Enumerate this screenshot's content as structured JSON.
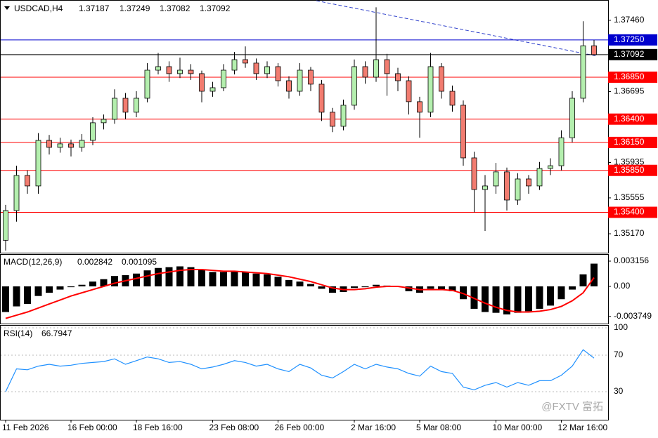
{
  "chart_data": {
    "type": "candlestick",
    "symbol": "USDCAD,H4",
    "categories": [
      "11 Feb 2026",
      null,
      null,
      null,
      null,
      null,
      "16 Feb 00:00",
      null,
      null,
      null,
      null,
      null,
      "18 Feb 16:00",
      null,
      null,
      null,
      null,
      null,
      null,
      "23 Feb 08:00",
      null,
      null,
      null,
      null,
      null,
      "26 Feb 00:00",
      null,
      null,
      null,
      null,
      null,
      null,
      "2 Mar 16:00",
      null,
      null,
      null,
      null,
      null,
      "5 Mar 08:00",
      null,
      null,
      null,
      null,
      null,
      null,
      "10 Mar 00:00",
      null,
      null,
      null,
      null,
      null,
      "12 Mar 16:00",
      null,
      null,
      null
    ],
    "candles": [
      [
        1.351,
        1.3548,
        1.3499,
        1.35419
      ],
      [
        1.35419,
        1.359,
        1.353,
        1.35796
      ],
      [
        1.35796,
        1.3585,
        1.356,
        1.35683
      ],
      [
        1.35683,
        1.3625,
        1.356,
        1.36172
      ],
      [
        1.36172,
        1.3623,
        1.3602,
        1.36097
      ],
      [
        1.36097,
        1.362,
        1.3604,
        1.36135
      ],
      [
        1.36135,
        1.3618,
        1.36,
        1.36097
      ],
      [
        1.36097,
        1.3624,
        1.3605,
        1.36172
      ],
      [
        1.36172,
        1.3642,
        1.3612,
        1.36361
      ],
      [
        1.36361,
        1.3645,
        1.3629,
        1.36398
      ],
      [
        1.36398,
        1.3672,
        1.3635,
        1.36624
      ],
      [
        1.36624,
        1.3668,
        1.364,
        1.36474
      ],
      [
        1.36474,
        1.367,
        1.3642,
        1.36624
      ],
      [
        1.36624,
        1.37,
        1.3658,
        1.36925
      ],
      [
        1.36925,
        1.3711,
        1.3688,
        1.36963
      ],
      [
        1.36963,
        1.3702,
        1.368,
        1.36888
      ],
      [
        1.36888,
        1.3706,
        1.3684,
        1.36925
      ],
      [
        1.36925,
        1.3699,
        1.3682,
        1.36888
      ],
      [
        1.36888,
        1.3692,
        1.3658,
        1.36699
      ],
      [
        1.36699,
        1.368,
        1.3664,
        1.36737
      ],
      [
        1.36737,
        1.3699,
        1.367,
        1.36925
      ],
      [
        1.36925,
        1.3712,
        1.3688,
        1.37038
      ],
      [
        1.37038,
        1.3718,
        1.3695,
        1.37001
      ],
      [
        1.37001,
        1.3705,
        1.3682,
        1.36888
      ],
      [
        1.36888,
        1.3702,
        1.3684,
        1.36963
      ],
      [
        1.36963,
        1.37,
        1.3675,
        1.36812
      ],
      [
        1.36812,
        1.3686,
        1.3662,
        1.36699
      ],
      [
        1.36699,
        1.37,
        1.3665,
        1.36925
      ],
      [
        1.36925,
        1.3696,
        1.367,
        1.36775
      ],
      [
        1.36775,
        1.3682,
        1.3638,
        1.36474
      ],
      [
        1.36474,
        1.3652,
        1.3626,
        1.36323
      ],
      [
        1.36323,
        1.3661,
        1.3628,
        1.36549
      ],
      [
        1.36549,
        1.3704,
        1.365,
        1.36963
      ],
      [
        1.36963,
        1.3702,
        1.3678,
        1.3685
      ],
      [
        1.3685,
        1.376,
        1.368,
        1.37038
      ],
      [
        1.37038,
        1.371,
        1.3665,
        1.36888
      ],
      [
        1.36888,
        1.3695,
        1.367,
        1.36812
      ],
      [
        1.36812,
        1.3686,
        1.3645,
        1.36587
      ],
      [
        1.36587,
        1.3664,
        1.362,
        1.36474
      ],
      [
        1.36474,
        1.3711,
        1.3642,
        1.36963
      ],
      [
        1.36963,
        1.37,
        1.3662,
        1.36699
      ],
      [
        1.36699,
        1.3676,
        1.3648,
        1.36549
      ],
      [
        1.36549,
        1.366,
        1.359,
        1.35984
      ],
      [
        1.35984,
        1.3605,
        1.354,
        1.35645
      ],
      [
        1.35645,
        1.358,
        1.352,
        1.35683
      ],
      [
        1.35683,
        1.3593,
        1.356,
        1.35834
      ],
      [
        1.35834,
        1.3588,
        1.3542,
        1.35532
      ],
      [
        1.35532,
        1.3582,
        1.3548,
        1.35758
      ],
      [
        1.35758,
        1.358,
        1.356,
        1.35683
      ],
      [
        1.35683,
        1.3594,
        1.3564,
        1.35871
      ],
      [
        1.35871,
        1.3598,
        1.358,
        1.359
      ],
      [
        1.359,
        1.3628,
        1.3585,
        1.362
      ],
      [
        1.362,
        1.367,
        1.3615,
        1.36624
      ],
      [
        1.36624,
        1.3745,
        1.3658,
        1.37187
      ],
      [
        1.37187,
        1.37249,
        1.37082,
        1.37092
      ]
    ],
    "up_color": "#b4efae",
    "down_color": "#f27c70",
    "ylim": [
      1.34967,
      1.37678
    ],
    "yticks": [
      {
        "value": 1.3746,
        "label": "1.37460"
      },
      {
        "value": 1.36695,
        "label": "1.36695"
      },
      {
        "value": 1.35935,
        "label": "1.35935"
      },
      {
        "value": 1.35555,
        "label": "1.35555"
      },
      {
        "value": 1.3517,
        "label": "1.35170"
      }
    ],
    "levels": [
      {
        "value": 1.3725,
        "label": "1.37250",
        "color": "#0000cd"
      },
      {
        "value": 1.37092,
        "label": "1.37092",
        "color": "#000000"
      },
      {
        "value": 1.3685,
        "label": "1.36850",
        "color": "#ff0000"
      },
      {
        "value": 1.364,
        "label": "1.36400",
        "color": "#ff0000"
      },
      {
        "value": 1.3615,
        "label": "1.36150",
        "color": "#ff0000"
      },
      {
        "value": 1.3585,
        "label": "1.35850",
        "color": "#ff0000"
      },
      {
        "value": 1.354,
        "label": "1.35400",
        "color": "#ff0000"
      }
    ],
    "macd": {
      "title": "MACD(12,26,9)",
      "histogram": [
        -0.0032,
        -0.0025,
        -0.0022,
        -0.0012,
        -0.0008,
        -0.0004,
        -0.0001,
        0.0002,
        0.0006,
        0.0009,
        0.0013,
        0.0014,
        0.0016,
        0.002,
        0.0023,
        0.0024,
        0.0025,
        0.0024,
        0.0021,
        0.0018,
        0.0018,
        0.0019,
        0.0018,
        0.0016,
        0.0015,
        0.0012,
        0.0008,
        0.0006,
        0.0003,
        -0.0003,
        -0.0008,
        -0.0007,
        -0.0002,
        -0.0001,
        0.0002,
        0.0001,
        0,
        -0.0006,
        -0.0008,
        -0.0003,
        -0.0004,
        -0.0006,
        -0.0016,
        -0.0028,
        -0.0032,
        -0.0033,
        -0.0035,
        -0.0033,
        -0.0031,
        -0.0028,
        -0.0024,
        -0.0016,
        -0.0004,
        0.0015,
        0.002842
      ],
      "signal": [
        -0.004,
        -0.0036,
        -0.0032,
        -0.0027,
        -0.0022,
        -0.0017,
        -0.0012,
        -0.0008,
        -0.0004,
        0,
        0.0004,
        0.0007,
        0.001,
        0.0013,
        0.0016,
        0.0018,
        0.002,
        0.0021,
        0.0021,
        0.002,
        0.0019,
        0.0019,
        0.0018,
        0.0017,
        0.0016,
        0.0014,
        0.0012,
        0.0009,
        0.0006,
        0.0002,
        -0.0002,
        -0.0004,
        -0.0004,
        -0.0003,
        -0.0001,
        0,
        0,
        -0.0002,
        -0.0004,
        -0.0004,
        -0.0004,
        -0.0005,
        -0.0009,
        -0.0015,
        -0.0021,
        -0.0026,
        -0.003,
        -0.0032,
        -0.0032,
        -0.0031,
        -0.0029,
        -0.0025,
        -0.0018,
        -0.0008,
        0.001095
      ],
      "histogram_color": "#000000",
      "signal_color": "#ff0000",
      "ylim": [
        -0.004734,
        0.003945
      ],
      "yticks": [
        0.003156,
        {
          "value": 0,
          "label": "0.00"
        },
        -0.003749
      ]
    },
    "rsi": {
      "title": "RSI(14)",
      "values": [
        30,
        55,
        54,
        58,
        60,
        58,
        59,
        61,
        62,
        63,
        66,
        60,
        64,
        68,
        66,
        62,
        63,
        60,
        55,
        57,
        60,
        64,
        62,
        58,
        60,
        55,
        52,
        60,
        56,
        48,
        45,
        52,
        60,
        55,
        60,
        57,
        55,
        50,
        47,
        58,
        52,
        50,
        35,
        32,
        37,
        40,
        35,
        40,
        37,
        42,
        42,
        48,
        58,
        76,
        66.7947
      ],
      "color": "#1e90ff",
      "ylim": [
        0,
        100
      ],
      "yticks": [
        100,
        70,
        30
      ]
    },
    "watermark": "@FXTV 富拓"
  }
}
